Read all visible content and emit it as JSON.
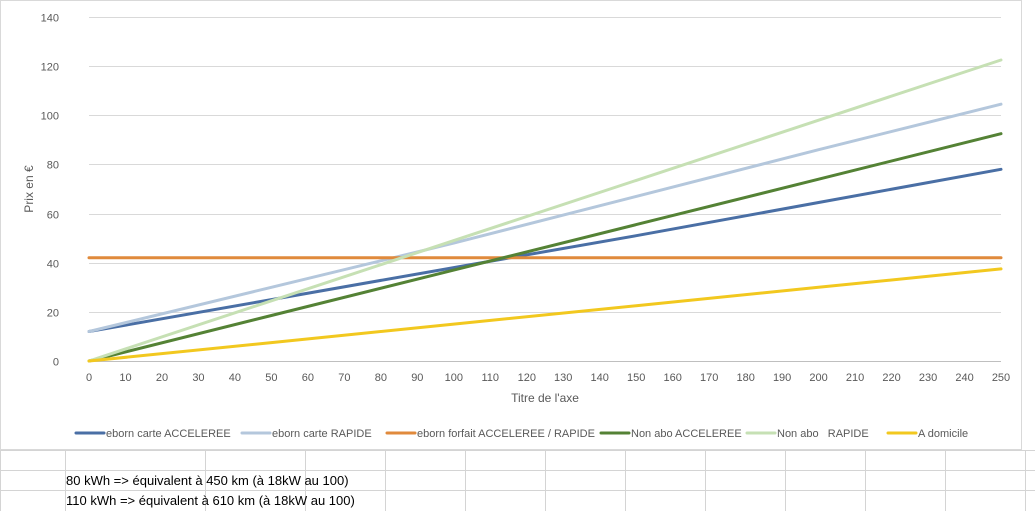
{
  "chart_data": {
    "type": "line",
    "title": "",
    "xlabel": "Titre de l'axe",
    "ylabel": "Prix en €",
    "xlim": [
      0,
      250
    ],
    "ylim": [
      0,
      140
    ],
    "x_ticks": [
      0,
      10,
      20,
      30,
      40,
      50,
      60,
      70,
      80,
      90,
      100,
      110,
      120,
      130,
      140,
      150,
      160,
      170,
      180,
      190,
      200,
      210,
      220,
      230,
      240,
      250
    ],
    "y_ticks": [
      0,
      20,
      40,
      60,
      80,
      100,
      120,
      140
    ],
    "grid": "horizontal",
    "legend_position": "bottom",
    "series": [
      {
        "name": "eborn carte ACCELEREE",
        "color": "#4a6fa5",
        "x": [
          0,
          50,
          100,
          150,
          200,
          250
        ],
        "y": [
          12,
          25,
          38,
          51,
          64.5,
          78
        ]
      },
      {
        "name": "eborn carte RAPIDE",
        "color": "#b4c7dc",
        "x": [
          0,
          50,
          100,
          150,
          200,
          250
        ],
        "y": [
          12,
          30,
          48,
          67,
          86,
          104.5
        ]
      },
      {
        "name": "eborn forfait ACCELEREE / RAPIDE",
        "color": "#e08a3c",
        "x": [
          0,
          250
        ],
        "y": [
          42,
          42
        ]
      },
      {
        "name": "Non abo ACCELEREE",
        "color": "#548235",
        "x": [
          0,
          50,
          100,
          150,
          200,
          250
        ],
        "y": [
          0,
          18.5,
          37,
          55.5,
          74,
          92.5
        ]
      },
      {
        "name": "Non abo   RAPIDE",
        "color": "#c6e0b4",
        "x": [
          0,
          50,
          100,
          150,
          200,
          250
        ],
        "y": [
          0,
          24.5,
          49,
          73.5,
          98,
          122.5
        ]
      },
      {
        "name": "A domicile",
        "color": "#f2c81f",
        "x": [
          0,
          50,
          100,
          150,
          200,
          250
        ],
        "y": [
          0,
          7.5,
          15,
          22.5,
          30,
          37.5
        ]
      }
    ]
  },
  "sheet": {
    "rows": [
      {
        "text": "80 kWh => équivalent à 450 km (à 18kW au 100)"
      },
      {
        "text": "110 kWh => équivalent à 610 km (à 18kW au 100)"
      }
    ]
  }
}
